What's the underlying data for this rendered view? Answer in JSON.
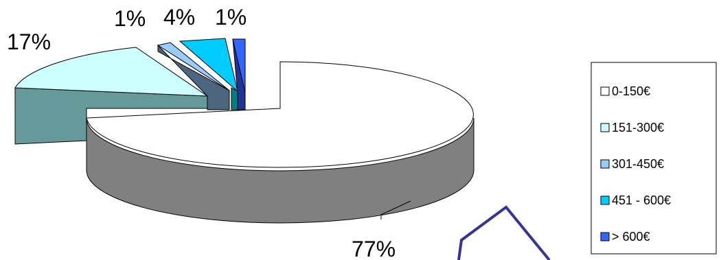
{
  "chart_data": {
    "type": "pie",
    "title": "",
    "categories": [
      "0-150€",
      "151-300€",
      "301-450€",
      "451 - 600€",
      "> 600€"
    ],
    "values": [
      77,
      17,
      1,
      4,
      1
    ],
    "data_labels": [
      "77%",
      "17%",
      "1%",
      "4%",
      "1%"
    ],
    "legend_position": "right",
    "three_d": true,
    "exploded": true,
    "colors": {
      "slice_tops": [
        "#FFFFFF",
        "#CCFFFF",
        "#99CCFF",
        "#00CCFF",
        "#3366FF"
      ],
      "slice_sides": [
        "#808080",
        "#669999",
        "#4D6680",
        "#008080",
        "#1F3399"
      ],
      "outline": "#000000",
      "stray_shape": "#333399"
    }
  }
}
